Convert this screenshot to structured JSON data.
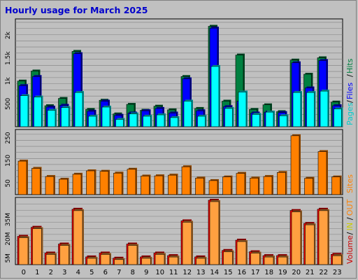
{
  "title": "Hourly usage for March 2025",
  "legend_top": [
    "Pages",
    "Files",
    "Hits"
  ],
  "legend_top_colors": [
    "#00cccc",
    "#0000ff",
    "#008040"
  ],
  "legend_mid": [
    "Sites"
  ],
  "legend_mid_colors": [
    "#ff8000"
  ],
  "legend_bot": [
    "Volume",
    "IN",
    "OUT"
  ],
  "legend_bot_colors": [
    "#cc0000",
    "#cccc00",
    "#ff8000"
  ],
  "colors": {
    "hits": "#008040",
    "files": "#0000ff",
    "pages": "#00ffff",
    "sites": "#ff8000",
    "volume": "#ff0000",
    "out": "#ffa040",
    "plot_bg": "#c0c0c0"
  },
  "chart_data": [
    {
      "type": "bar",
      "name": "top",
      "categories": [
        "0",
        "1",
        "2",
        "3",
        "4",
        "5",
        "6",
        "7",
        "8",
        "9",
        "10",
        "11",
        "12",
        "13",
        "14",
        "15",
        "16",
        "17",
        "18",
        "19",
        "20",
        "21",
        "22",
        "23"
      ],
      "series": [
        {
          "name": "Hits",
          "values": [
            1000,
            1220,
            460,
            620,
            1650,
            380,
            580,
            280,
            490,
            360,
            450,
            370,
            1100,
            400,
            2200,
            560,
            1570,
            380,
            480,
            330,
            1460,
            1150,
            1510,
            540
          ]
        },
        {
          "name": "Files",
          "values": [
            900,
            1100,
            430,
            470,
            1600,
            340,
            560,
            250,
            300,
            350,
            400,
            300,
            1050,
            350,
            2160,
            440,
            560,
            300,
            320,
            310,
            1400,
            850,
            1450,
            460
          ]
        },
        {
          "name": "Pages",
          "values": [
            680,
            650,
            360,
            420,
            750,
            230,
            430,
            160,
            280,
            230,
            260,
            200,
            560,
            230,
            1320,
            400,
            760,
            270,
            320,
            240,
            750,
            750,
            780,
            390
          ]
        }
      ],
      "y_ticks": [
        "500",
        "1k",
        "1.5k",
        "2k"
      ],
      "ylim": [
        0,
        2300
      ]
    },
    {
      "type": "bar",
      "name": "middle",
      "categories": [
        "0",
        "1",
        "2",
        "3",
        "4",
        "5",
        "6",
        "7",
        "8",
        "9",
        "10",
        "11",
        "12",
        "13",
        "14",
        "15",
        "16",
        "17",
        "18",
        "19",
        "20",
        "21",
        "22",
        "23"
      ],
      "series": [
        {
          "name": "Sites",
          "values": [
            148,
            116,
            80,
            68,
            90,
            105,
            103,
            95,
            112,
            82,
            83,
            86,
            123,
            73,
            62,
            78,
            94,
            73,
            80,
            98,
            260,
            72,
            190,
            78
          ]
        }
      ],
      "y_ticks": [
        "50",
        "150",
        "250"
      ],
      "ylim": [
        0,
        275
      ]
    },
    {
      "type": "bar",
      "name": "bottom",
      "categories": [
        "0",
        "1",
        "2",
        "3",
        "4",
        "5",
        "6",
        "7",
        "8",
        "9",
        "10",
        "11",
        "12",
        "13",
        "14",
        "15",
        "16",
        "17",
        "18",
        "19",
        "20",
        "21",
        "22",
        "23"
      ],
      "series": [
        {
          "name": "Volume",
          "values": [
            22,
            29,
            9,
            16,
            43,
            6,
            9,
            5,
            16,
            6,
            9,
            7,
            34,
            6,
            50,
            11,
            19,
            10,
            7,
            7,
            42,
            32,
            43,
            8
          ]
        }
      ],
      "y_ticks": [
        "5M",
        "20M",
        "35M"
      ],
      "ylim": [
        0,
        50
      ]
    }
  ]
}
